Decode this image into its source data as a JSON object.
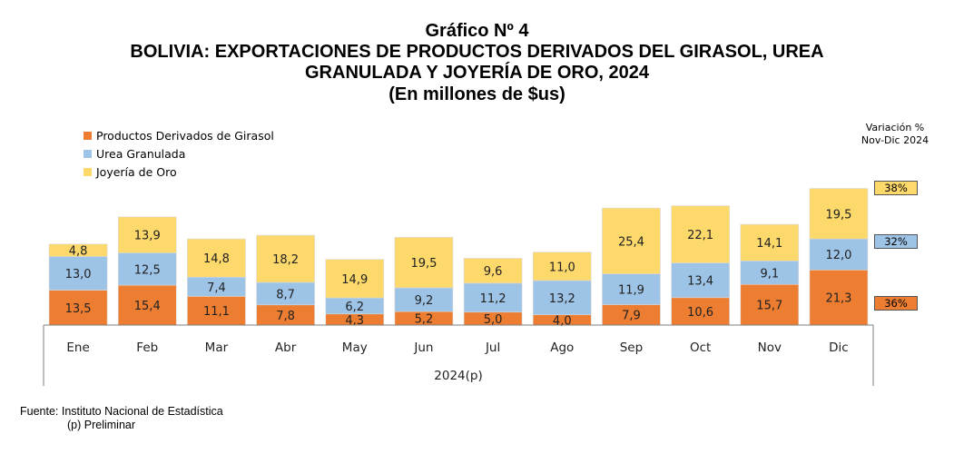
{
  "title": {
    "line1": "Gráfico Nº 4",
    "line2": "BOLIVIA: EXPORTACIONES DE PRODUCTOS DERIVADOS DEL GIRASOL, UREA",
    "line3": "GRANULADA Y JOYERÍA DE ORO, 2024",
    "line4": "(En millones de $us)"
  },
  "variation": {
    "title_line1": "Variación %",
    "title_line2": "Nov-Dic 2024",
    "badges": [
      {
        "series": "Joyería de Oro",
        "value": "38%",
        "color": "#FDD86B"
      },
      {
        "series": "Urea Granulada",
        "value": "32%",
        "color": "#9DC3E6"
      },
      {
        "series": "Productos Derivados de Girasol",
        "value": "36%",
        "color": "#ED7D31"
      }
    ]
  },
  "source": {
    "line1": "Fuente: Instituto Nacional de Estadística",
    "line2": "(p) Preliminar"
  },
  "chart_data": {
    "type": "bar",
    "stacked": true,
    "categories": [
      "Ene",
      "Feb",
      "Mar",
      "Abr",
      "May",
      "Jun",
      "Jul",
      "Ago",
      "Sep",
      "Oct",
      "Nov",
      "Dic"
    ],
    "xlabel": "2024(p)",
    "ylabel": "",
    "legend_position": "top-left",
    "grid": false,
    "series": [
      {
        "name": "Productos Derivados de Girasol",
        "color": "#ED7D31",
        "values": [
          13.5,
          15.4,
          11.1,
          7.8,
          4.3,
          5.2,
          5.0,
          4.0,
          7.9,
          10.6,
          15.7,
          21.3
        ],
        "labels": [
          "13,5",
          "15,4",
          "11,1",
          "7,8",
          "4,3",
          "5,2",
          "5,0",
          "4,0",
          "7,9",
          "10,6",
          "15,7",
          "21,3"
        ]
      },
      {
        "name": "Urea Granulada",
        "color": "#9DC3E6",
        "values": [
          13.0,
          12.5,
          7.4,
          8.7,
          6.2,
          9.2,
          11.2,
          13.2,
          11.9,
          13.4,
          9.1,
          12.0
        ],
        "labels": [
          "13,0",
          "12,5",
          "7,4",
          "8,7",
          "6,2",
          "9,2",
          "11,2",
          "13,2",
          "11,9",
          "13,4",
          "9,1",
          "12,0"
        ]
      },
      {
        "name": "Joyería de Oro",
        "color": "#FDD86B",
        "values": [
          4.8,
          13.9,
          14.8,
          18.2,
          14.9,
          19.5,
          9.6,
          11.0,
          25.4,
          22.1,
          14.1,
          19.5
        ],
        "labels": [
          "4,8",
          "13,9",
          "14,8",
          "18,2",
          "14,9",
          "19,5",
          "9,6",
          "11,0",
          "25,4",
          "22,1",
          "14,1",
          "19,5"
        ]
      }
    ]
  }
}
